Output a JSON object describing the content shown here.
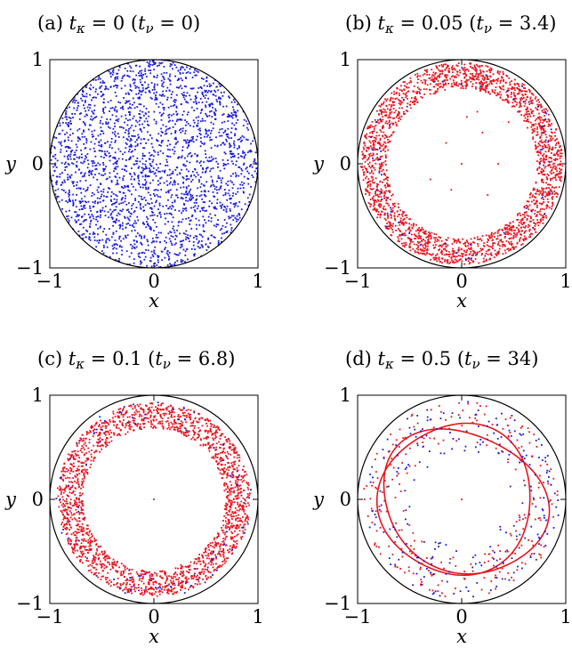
{
  "colors": {
    "blue": "#1a1adc",
    "red": "#e8141e",
    "frame": "#000000"
  },
  "chart_data": [
    {
      "type": "scatter",
      "panel": "a",
      "title_parts": [
        "(a) ",
        "t",
        "κ",
        " = 0    (",
        "t",
        "ν",
        " = 0)"
      ],
      "title": "(a) tκ = 0    (tν = 0)",
      "xlabel": "x",
      "ylabel": "y",
      "xlim": [
        -1,
        1
      ],
      "ylim": [
        -1,
        1
      ],
      "xticks": [
        "−1",
        "0",
        "1"
      ],
      "yticks": [
        "−1",
        "0",
        "1"
      ],
      "boundary": "unit circle",
      "series": [
        {
          "color": "blue",
          "distribution": "uniform disk",
          "r_range": [
            0,
            1
          ],
          "count": 2400
        }
      ]
    },
    {
      "type": "scatter",
      "panel": "b",
      "title_parts": [
        "(b) ",
        "t",
        "κ",
        " = 0.05    (",
        "t",
        "ν",
        " = 3.4)"
      ],
      "title": "(b) tκ = 0.05    (tν = 3.4)",
      "xlabel": "x",
      "ylabel": "y",
      "xlim": [
        -1,
        1
      ],
      "ylim": [
        -1,
        1
      ],
      "xticks": [
        "−1",
        "0",
        "1"
      ],
      "yticks": [
        "−1",
        "0",
        "1"
      ],
      "boundary": "unit circle",
      "series": [
        {
          "color": "red",
          "distribution": "annulus",
          "r_range": [
            0.72,
            0.97
          ],
          "count": 2200
        },
        {
          "color": "blue",
          "distribution": "annulus",
          "r_range": [
            0.75,
            0.95
          ],
          "count": 70
        },
        {
          "color": "red",
          "distribution": "interior",
          "points": [
            [
              0.05,
              0.45
            ],
            [
              0.2,
              0.3
            ],
            [
              -0.15,
              0.2
            ],
            [
              0.0,
              0.0
            ],
            [
              -0.3,
              -0.15
            ],
            [
              0.45,
              0.4
            ],
            [
              -0.1,
              -0.25
            ],
            [
              0.35,
              0.0
            ],
            [
              0.15,
              0.5
            ],
            [
              0.25,
              -0.3
            ]
          ]
        }
      ]
    },
    {
      "type": "scatter",
      "panel": "c",
      "title_parts": [
        "(c) ",
        "t",
        "κ",
        " = 0.1    (",
        "t",
        "ν",
        " = 6.8)"
      ],
      "title": "(c) tκ = 0.1    (tν = 6.8)",
      "xlabel": "x",
      "ylabel": "y",
      "xlim": [
        -1,
        1
      ],
      "ylim": [
        -1,
        1
      ],
      "xticks": [
        "−1",
        "0",
        "1"
      ],
      "yticks": [
        "−1",
        "0",
        "1"
      ],
      "boundary": "unit circle",
      "series": [
        {
          "color": "red",
          "distribution": "annulus",
          "r_range": [
            0.68,
            0.93
          ],
          "count": 2000
        },
        {
          "color": "blue",
          "distribution": "annulus",
          "r_range": [
            0.72,
            0.95
          ],
          "count": 90
        },
        {
          "color": "red",
          "distribution": "interior",
          "points": [
            [
              0.0,
              0.0
            ]
          ]
        }
      ]
    },
    {
      "type": "scatter",
      "panel": "d",
      "title_parts": [
        "(d) ",
        "t",
        "κ",
        " = 0.5    (",
        "t",
        "ν",
        " = 34)"
      ],
      "title": "(d) tκ = 0.5    (tν = 34)",
      "xlabel": "x",
      "ylabel": "y",
      "xlim": [
        -1,
        1
      ],
      "ylim": [
        -1,
        1
      ],
      "xticks": [
        "−1",
        "0",
        "1"
      ],
      "yticks": [
        "−1",
        "0",
        "1"
      ],
      "boundary": "unit circle",
      "series": [
        {
          "color": "red",
          "distribution": "closed curve",
          "center": [
            -0.05,
            0.0
          ],
          "radii": [
            0.74,
            0.72
          ],
          "tilt_deg": 30
        },
        {
          "color": "red",
          "distribution": "closed curve",
          "center": [
            0.02,
            -0.02
          ],
          "radii": [
            0.82,
            0.66
          ],
          "tilt_deg": -25
        },
        {
          "color": "red",
          "distribution": "annulus",
          "r_range": [
            0.55,
            0.95
          ],
          "count": 260
        },
        {
          "color": "blue",
          "distribution": "annulus",
          "r_range": [
            0.45,
            0.95
          ],
          "count": 230
        },
        {
          "color": "red",
          "distribution": "interior",
          "points": [
            [
              0.0,
              0.0
            ]
          ]
        }
      ]
    }
  ]
}
